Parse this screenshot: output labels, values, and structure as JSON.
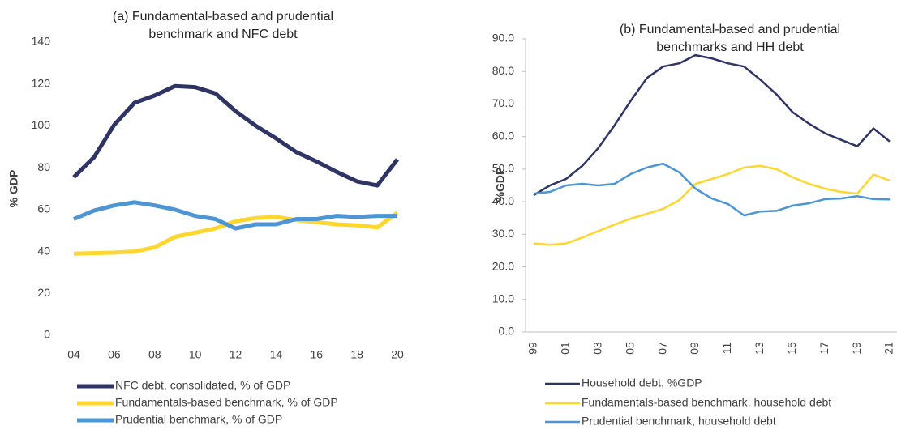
{
  "chart_data": [
    {
      "type": "line",
      "title": "(a) Fundamental-based and prudential benchmark and NFC debt",
      "ylabel": "% GDP",
      "categories": [
        "04",
        null,
        "06",
        null,
        "08",
        null,
        "10",
        null,
        "12",
        null,
        "14",
        null,
        "16",
        null,
        "18",
        null,
        "20"
      ],
      "ylim": [
        0,
        140
      ],
      "yticks": [
        0,
        20,
        40,
        60,
        80,
        100,
        120,
        140
      ],
      "series": [
        {
          "name": "NFC debt, consolidated,  % of GDP",
          "color": "#2e3565",
          "values": [
            75.5,
            85,
            100.5,
            111,
            114.5,
            119,
            118.5,
            115.5,
            107,
            100,
            94,
            87.5,
            83,
            78,
            73.5,
            71.5,
            84
          ]
        },
        {
          "name": "Fundamentals-based benchmark, % of GDP",
          "color": "#fdd72f",
          "values": [
            39,
            39.2,
            39.5,
            40,
            42,
            47,
            49,
            51,
            54.5,
            56,
            56.5,
            55,
            54,
            53,
            52.5,
            51.5,
            58.5
          ]
        },
        {
          "name": "Prudential benchmark, % of GDP",
          "color": "#4e95d4",
          "values": [
            55.5,
            59.5,
            62,
            63.5,
            62,
            60,
            57,
            55.5,
            51,
            53,
            53,
            55.5,
            55.5,
            57,
            56.5,
            57,
            57
          ]
        }
      ]
    },
    {
      "type": "line",
      "title": "(b) Fundamental-based and prudential benchmarks and HH debt",
      "ylabel": "%GDP",
      "categories": [
        "99",
        null,
        "01",
        null,
        "03",
        null,
        "05",
        null,
        "07",
        null,
        "09",
        null,
        "11",
        null,
        "13",
        null,
        "15",
        null,
        "17",
        null,
        "19",
        null,
        "21"
      ],
      "ylim": [
        0,
        90
      ],
      "yticks": [
        {
          "value": 0,
          "label": "0.0"
        },
        {
          "value": 10,
          "label": "10.0"
        },
        {
          "value": 20,
          "label": "20.0"
        },
        {
          "value": 30,
          "label": "30.0"
        },
        {
          "value": 40,
          "label": "40.0"
        },
        {
          "value": 50,
          "label": "50.0"
        },
        {
          "value": 60,
          "label": "60.0"
        },
        {
          "value": 70,
          "label": "70.0"
        },
        {
          "value": 80,
          "label": "80.0"
        },
        {
          "value": 90,
          "label": "90.0"
        }
      ],
      "series": [
        {
          "name": "Household debt, %GDP",
          "color": "#2e3565",
          "values": [
            42,
            45,
            47,
            51,
            56.5,
            63.5,
            71,
            78,
            81.5,
            82.5,
            85,
            84,
            82.5,
            81.5,
            77.5,
            73,
            67.5,
            64,
            61,
            59,
            57,
            62.5,
            58.5
          ]
        },
        {
          "name": "Fundamentals-based benchmark, household debt",
          "color": "#fdd72f",
          "values": [
            27.2,
            26.8,
            27.2,
            29,
            31,
            33,
            34.8,
            36.3,
            37.8,
            40.5,
            45.5,
            47,
            48.5,
            50.5,
            51,
            50,
            47.5,
            45.5,
            44,
            43,
            42.5,
            48.3,
            46.5
          ]
        },
        {
          "name": "Prudential benchmark, household debt",
          "color": "#4e95d4",
          "values": [
            42.5,
            43,
            45,
            45.5,
            45,
            45.5,
            48.5,
            50.5,
            51.7,
            49,
            44,
            41,
            39.3,
            35.8,
            37,
            37.2,
            38.8,
            39.5,
            40.8,
            41,
            41.7,
            40.8,
            40.7
          ]
        }
      ]
    }
  ]
}
